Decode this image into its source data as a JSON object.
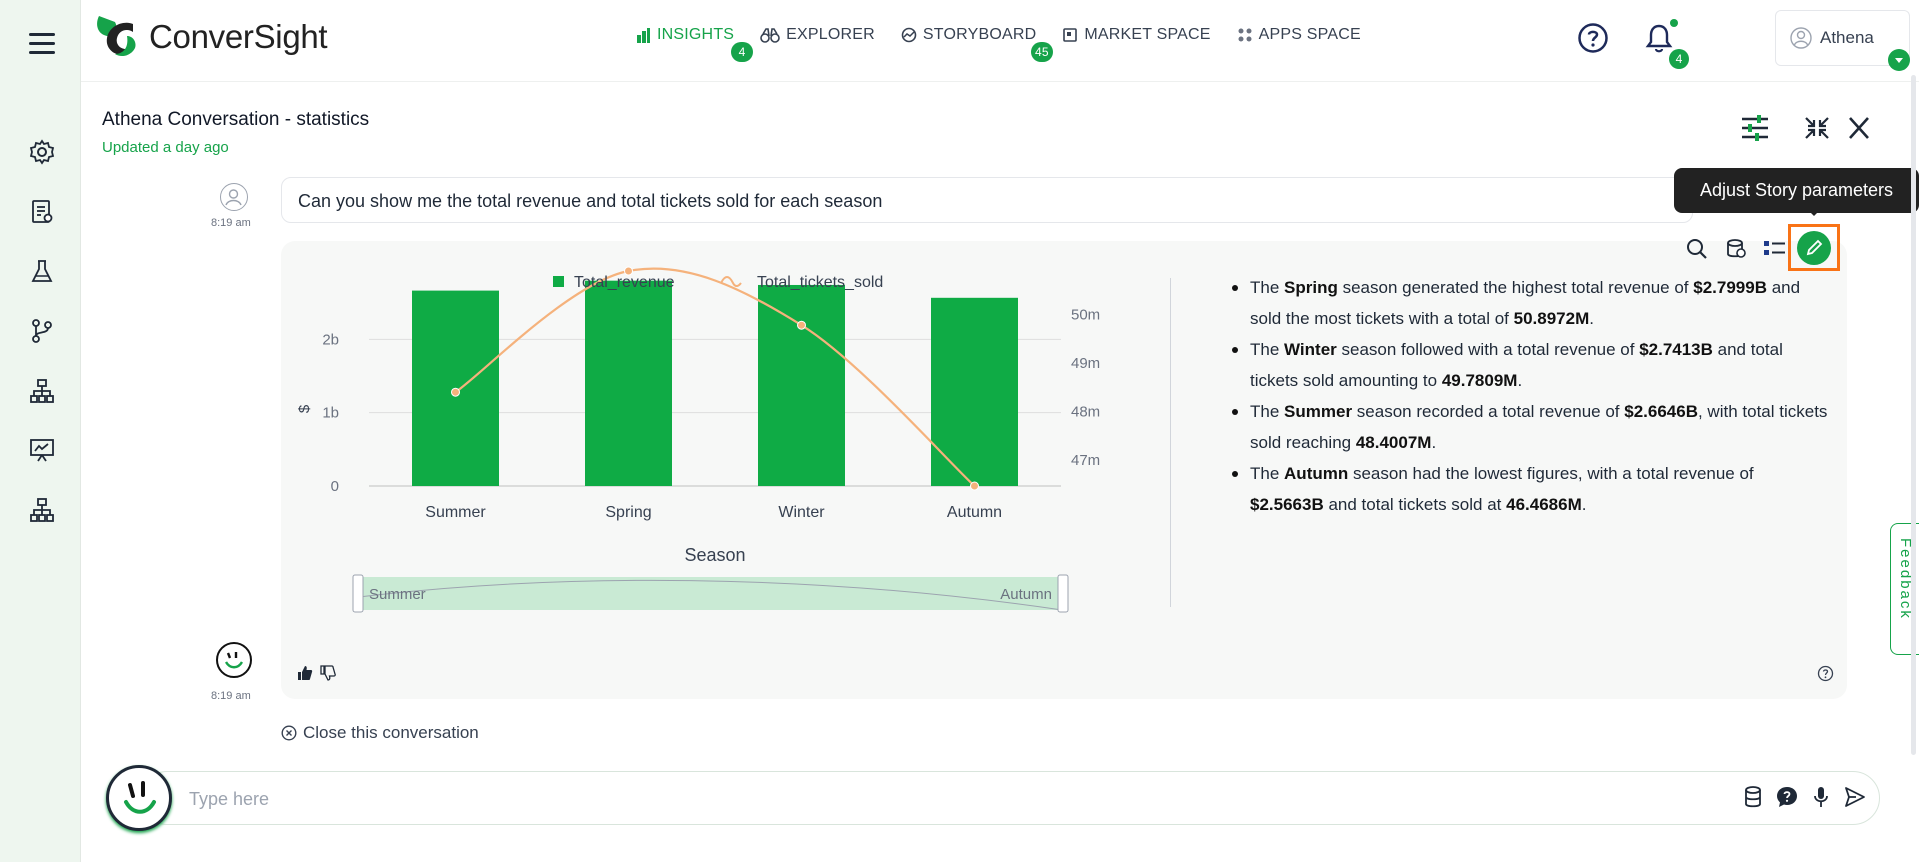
{
  "app": {
    "name": "ConverSight"
  },
  "nav": {
    "items": [
      {
        "label": "INSIGHTS",
        "badge": "4",
        "active": true
      },
      {
        "label": "EXPLORER",
        "badge": ""
      },
      {
        "label": "STORYBOARD",
        "badge": "45"
      },
      {
        "label": "MARKET SPACE",
        "badge": ""
      },
      {
        "label": "APPS SPACE",
        "badge": ""
      }
    ]
  },
  "header": {
    "notifications_count": "4",
    "user_name": "Athena"
  },
  "conversation": {
    "title": "Athena Conversation - statistics",
    "updated": "Updated a day ago",
    "question": "Can you show me the total revenue and total tickets sold for each season",
    "question_time": "8:19 am",
    "answer_time": "8:19 am",
    "close_label": "Close this conversation"
  },
  "tooltip": {
    "text": "Adjust Story parameters"
  },
  "chart_data": {
    "type": "bar",
    "categories": [
      "Summer",
      "Spring",
      "Winter",
      "Autumn"
    ],
    "series": [
      {
        "name": "Total_revenue",
        "type": "bar",
        "axis": "left",
        "color": "#0fab45",
        "values": [
          2.6646,
          2.7999,
          2.7413,
          2.5663
        ]
      },
      {
        "name": "Total_tickets_sold",
        "type": "line",
        "axis": "right",
        "color": "#f5b27c",
        "values": [
          48.4007,
          50.8972,
          49.7809,
          46.4686
        ]
      }
    ],
    "xlabel": "Season",
    "ylabel": "$",
    "y_ticks": [
      "0",
      "1b",
      "2b"
    ],
    "ylim": [
      0,
      3
    ],
    "y2_ticks": [
      "47m",
      "48m",
      "49m",
      "50m"
    ],
    "y2lim": [
      46.4686,
      50.8972
    ],
    "legend": "top",
    "grid": true,
    "zoom_range": {
      "start": "Summer",
      "end": "Autumn"
    }
  },
  "insights": [
    {
      "parts": [
        [
          "The ",
          false
        ],
        [
          "Spring",
          true
        ],
        [
          " season generated the highest total revenue of ",
          false
        ],
        [
          "$2.7999B",
          true
        ],
        [
          " and sold the most tickets with a total of ",
          false
        ],
        [
          "50.8972M",
          true
        ],
        [
          ".",
          false
        ]
      ]
    },
    {
      "parts": [
        [
          "The ",
          false
        ],
        [
          "Winter",
          true
        ],
        [
          " season followed with a total revenue of ",
          false
        ],
        [
          "$2.7413B",
          true
        ],
        [
          " and total tickets sold amounting to ",
          false
        ],
        [
          "49.7809M",
          true
        ],
        [
          ".",
          false
        ]
      ]
    },
    {
      "parts": [
        [
          "The ",
          false
        ],
        [
          "Summer",
          true
        ],
        [
          " season recorded a total revenue of ",
          false
        ],
        [
          "$2.6646B",
          true
        ],
        [
          ", with total tickets sold reaching ",
          false
        ],
        [
          "48.4007M",
          true
        ],
        [
          ".",
          false
        ]
      ]
    },
    {
      "parts": [
        [
          "The ",
          false
        ],
        [
          "Autumn",
          true
        ],
        [
          " season had the lowest figures, with a total revenue of ",
          false
        ],
        [
          "$2.5663B",
          true
        ],
        [
          " and total tickets sold at ",
          false
        ],
        [
          "46.4686M",
          true
        ],
        [
          ".",
          false
        ]
      ]
    }
  ],
  "input": {
    "placeholder": "Type here"
  },
  "feedback": {
    "label": "Feedback"
  },
  "colors": {
    "accent": "#16a34a",
    "highlight": "#f97316"
  },
  "icons": {
    "sidebar": [
      "gear-icon",
      "report-icon",
      "flask-icon",
      "branch-icon",
      "hierarchy-icon",
      "presentation-icon",
      "hierarchy-icon"
    ],
    "header": [
      "filter-sliders-icon",
      "collapse-icon",
      "close-icon"
    ],
    "tools": [
      "search-icon",
      "database-icon",
      "list-icon",
      "pencil-icon"
    ],
    "input": [
      "database-icon",
      "question-icon",
      "microphone-icon",
      "send-icon"
    ]
  }
}
